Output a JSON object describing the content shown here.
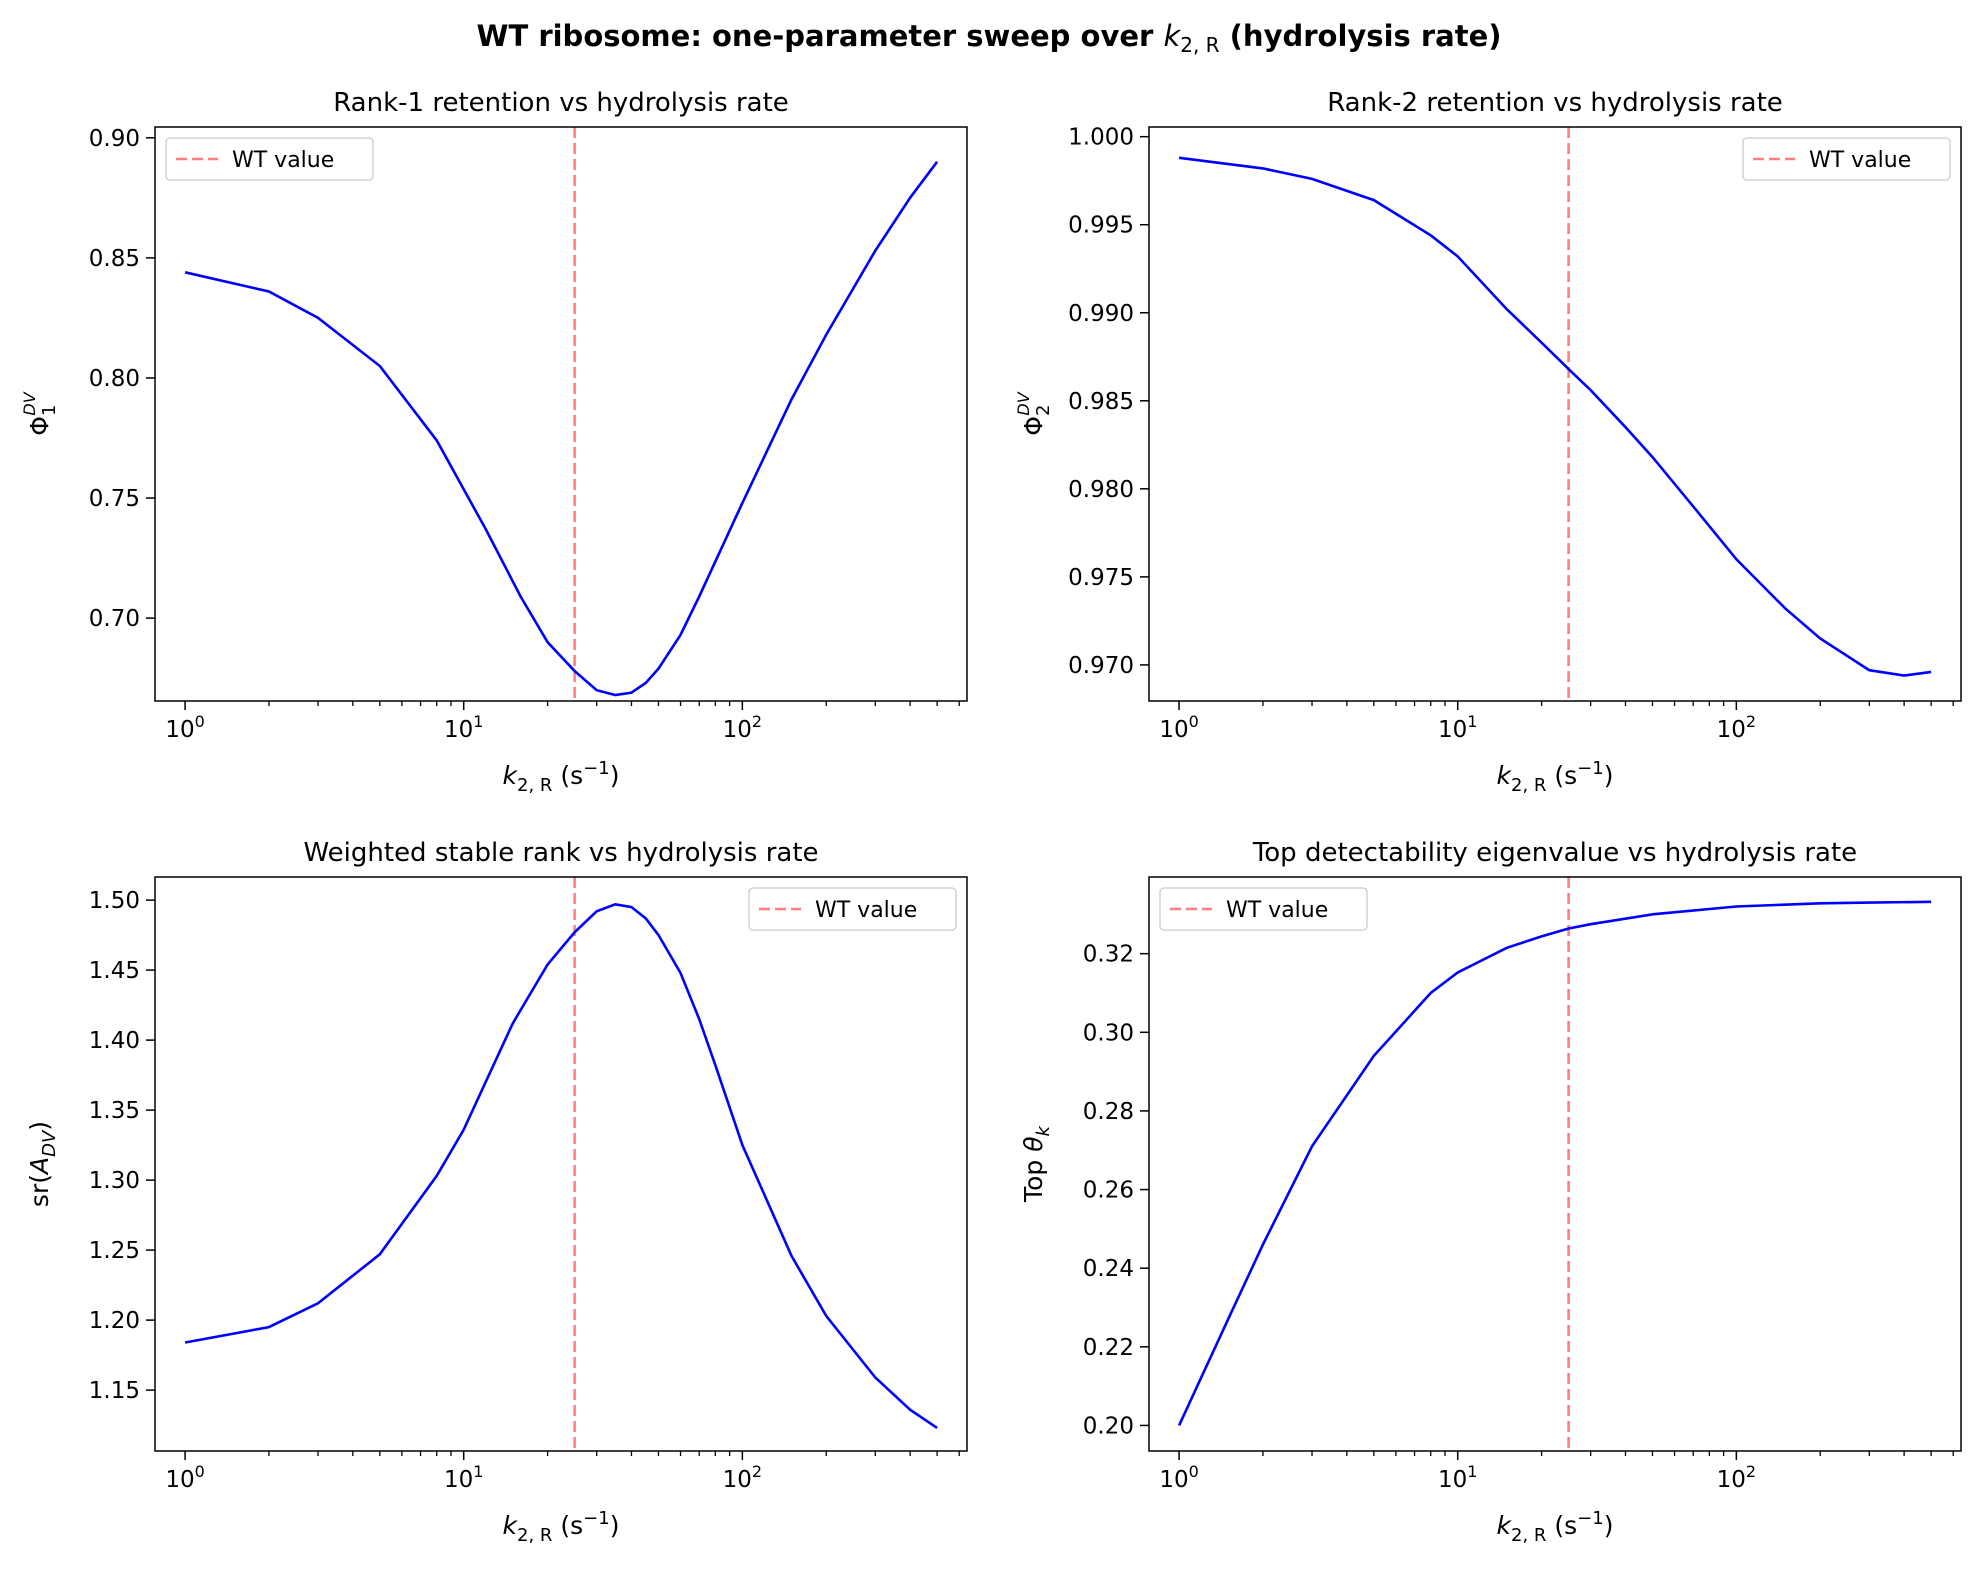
{
  "figure": {
    "title": "WT ribosome: one-parameter sweep over ",
    "title_math": "k",
    "title_sub": "2, R",
    "title_end": " (hydrolysis rate)"
  },
  "colors": {
    "curve": "#0000ff",
    "wt_line": "#ff7f7f",
    "axes": "#000000"
  },
  "chart_data": [
    {
      "type": "line",
      "title": "Rank-1 retention vs hydrolysis rate",
      "xscale": "log",
      "xlim": [
        0.78,
        640
      ],
      "ylim": [
        0.6655,
        0.9045
      ],
      "xticks": [
        1,
        10,
        100
      ],
      "xtick_labels": [
        {
          "base": "10",
          "exp": "0"
        },
        {
          "base": "10",
          "exp": "1"
        },
        {
          "base": "10",
          "exp": "2"
        }
      ],
      "yticks": [
        0.7,
        0.75,
        0.8,
        0.85,
        0.9
      ],
      "ytick_labels": [
        "0.70",
        "0.75",
        "0.80",
        "0.85",
        "0.90"
      ],
      "xlabel": {
        "main": "k",
        "sub": "2, R",
        "unit": " (s",
        "unit_exp": "−1",
        "unit_end": ")"
      },
      "ylabel": {
        "main": "Φ",
        "sub": "1",
        "sup": "DV"
      },
      "legend": {
        "label": "WT value",
        "loc": "upper left"
      },
      "wt_value": 25,
      "series": [
        {
          "name": "curve",
          "x": [
            1,
            2,
            3,
            5,
            8,
            12,
            16,
            20,
            25,
            30,
            35,
            40,
            45,
            50,
            60,
            70,
            100,
            150,
            200,
            300,
            400,
            500
          ],
          "y": [
            0.844,
            0.836,
            0.825,
            0.805,
            0.774,
            0.737,
            0.709,
            0.69,
            0.678,
            0.67,
            0.668,
            0.669,
            0.673,
            0.679,
            0.693,
            0.709,
            0.748,
            0.791,
            0.818,
            0.853,
            0.875,
            0.89
          ]
        }
      ]
    },
    {
      "type": "line",
      "title": "Rank-2 retention vs hydrolysis rate",
      "xscale": "log",
      "xlim": [
        0.78,
        640
      ],
      "ylim": [
        0.96795,
        1.00055
      ],
      "xticks": [
        1,
        10,
        100
      ],
      "xtick_labels": [
        {
          "base": "10",
          "exp": "0"
        },
        {
          "base": "10",
          "exp": "1"
        },
        {
          "base": "10",
          "exp": "2"
        }
      ],
      "yticks": [
        0.97,
        0.975,
        0.98,
        0.985,
        0.99,
        0.995,
        1.0
      ],
      "ytick_labels": [
        "0.970",
        "0.975",
        "0.980",
        "0.985",
        "0.990",
        "0.995",
        "1.000"
      ],
      "xlabel": {
        "main": "k",
        "sub": "2, R",
        "unit": " (s",
        "unit_exp": "−1",
        "unit_end": ")"
      },
      "ylabel": {
        "main": "Φ",
        "sub": "2",
        "sup": "DV"
      },
      "legend": {
        "label": "WT value",
        "loc": "upper right"
      },
      "wt_value": 25,
      "series": [
        {
          "name": "curve",
          "x": [
            1,
            2,
            3,
            5,
            8,
            10,
            15,
            20,
            25,
            30,
            40,
            50,
            70,
            100,
            150,
            200,
            300,
            400,
            500
          ],
          "y": [
            0.9988,
            0.9982,
            0.9976,
            0.9964,
            0.9944,
            0.9932,
            0.9902,
            0.9883,
            0.9868,
            0.9856,
            0.9835,
            0.9818,
            0.979,
            0.976,
            0.9732,
            0.9715,
            0.9697,
            0.9694,
            0.9696
          ]
        }
      ]
    },
    {
      "type": "line",
      "title": "Weighted stable rank vs hydrolysis rate",
      "xscale": "log",
      "xlim": [
        0.78,
        640
      ],
      "ylim": [
        1.1065,
        1.5165
      ],
      "xticks": [
        1,
        10,
        100
      ],
      "xtick_labels": [
        {
          "base": "10",
          "exp": "0"
        },
        {
          "base": "10",
          "exp": "1"
        },
        {
          "base": "10",
          "exp": "2"
        }
      ],
      "yticks": [
        1.15,
        1.2,
        1.25,
        1.3,
        1.35,
        1.4,
        1.45,
        1.5
      ],
      "ytick_labels": [
        "1.15",
        "1.20",
        "1.25",
        "1.30",
        "1.35",
        "1.40",
        "1.45",
        "1.50"
      ],
      "xlabel": {
        "main": "k",
        "sub": "2, R",
        "unit": " (s",
        "unit_exp": "−1",
        "unit_end": ")"
      },
      "ylabel": {
        "pre": "sr(",
        "main": "A",
        "sub": "DV",
        "post": ")"
      },
      "legend": {
        "label": "WT value",
        "loc": "upper right"
      },
      "wt_value": 25,
      "series": [
        {
          "name": "curve",
          "x": [
            1,
            2,
            3,
            5,
            8,
            10,
            15,
            20,
            25,
            30,
            35,
            40,
            45,
            50,
            60,
            70,
            80,
            100,
            150,
            200,
            300,
            400,
            500
          ],
          "y": [
            1.184,
            1.195,
            1.212,
            1.247,
            1.303,
            1.336,
            1.412,
            1.454,
            1.477,
            1.492,
            1.497,
            1.495,
            1.487,
            1.475,
            1.448,
            1.415,
            1.382,
            1.325,
            1.246,
            1.203,
            1.159,
            1.136,
            1.123
          ]
        }
      ]
    },
    {
      "type": "line",
      "title": "Top detectability eigenvalue vs hydrolysis rate",
      "xscale": "log",
      "xlim": [
        0.78,
        640
      ],
      "ylim": [
        0.1935,
        0.3395
      ],
      "xticks": [
        1,
        10,
        100
      ],
      "xtick_labels": [
        {
          "base": "10",
          "exp": "0"
        },
        {
          "base": "10",
          "exp": "1"
        },
        {
          "base": "10",
          "exp": "2"
        }
      ],
      "yticks": [
        0.2,
        0.22,
        0.24,
        0.26,
        0.28,
        0.3,
        0.32
      ],
      "ytick_labels": [
        "0.20",
        "0.22",
        "0.24",
        "0.26",
        "0.28",
        "0.30",
        "0.32"
      ],
      "xlabel": {
        "main": "k",
        "sub": "2, R",
        "unit": " (s",
        "unit_exp": "−1",
        "unit_end": ")"
      },
      "ylabel": {
        "pre": "Top ",
        "main": "θ",
        "sub": "k"
      },
      "legend": {
        "label": "WT value",
        "loc": "upper left"
      },
      "wt_value": 25,
      "series": [
        {
          "name": "curve",
          "x": [
            1,
            1.5,
            2,
            3,
            5,
            8,
            10,
            15,
            20,
            25,
            30,
            50,
            100,
            200,
            300,
            500
          ],
          "y": [
            0.2,
            0.227,
            0.246,
            0.271,
            0.294,
            0.31,
            0.3152,
            0.3215,
            0.3244,
            0.3264,
            0.3275,
            0.33,
            0.332,
            0.3328,
            0.333,
            0.3332
          ]
        }
      ]
    }
  ]
}
